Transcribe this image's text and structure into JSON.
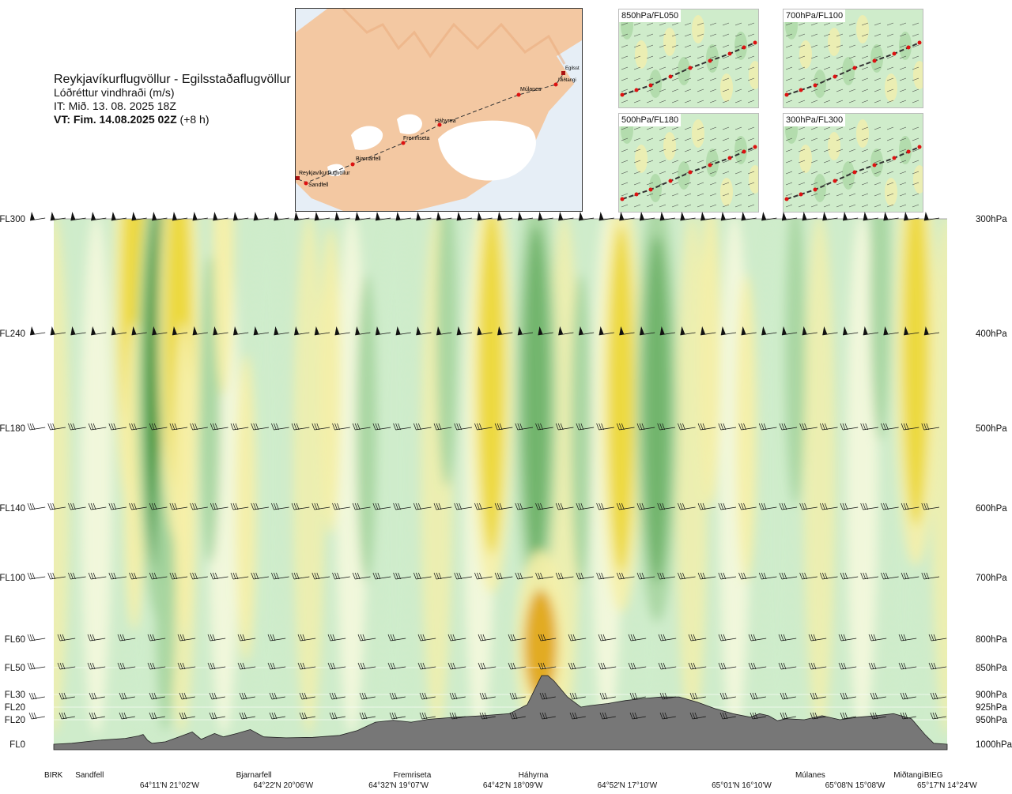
{
  "header": {
    "route": "Reykjavíkurflugvöllur - Egilsstaðaflugvöllur",
    "parameter": "Lóðréttur vindhraði (m/s)",
    "issue_time": "IT: Mið. 13. 08. 2025 18Z",
    "valid_time": "VT: Fim. 14.08.2025 02Z",
    "lead": "(+8 h)"
  },
  "map": {
    "places": [
      "Reykjavíkurflugvöllur",
      "Sandfell",
      "Bjarnarfell",
      "Fremriseta",
      "Háhyrna",
      "Múlanes",
      "Miðtangi",
      "Egilsst"
    ]
  },
  "insets": [
    "850hPa/FL050",
    "700hPa/FL100",
    "500hPa/FL180",
    "300hPa/FL300"
  ],
  "colors": {
    "strong_up": "#e0a818",
    "up": "#ecd83a",
    "weak_up": "#f6efa8",
    "near_zero": "#fcfbe0",
    "weak_down": "#cfeccb",
    "down": "#a6d5a0",
    "strong_down": "#6fb36a",
    "very_strong_down": "#3c9438",
    "terrain": "#777777",
    "map_land": "#f3c8a2",
    "map_sea": "#e6eef6"
  },
  "chart_data": {
    "type": "heatmap",
    "title": "Reykjavíkurflugvöllur - Egilsstaðaflugvöllur",
    "variable": "Lóðréttur vindhraði (m/s)",
    "left_axis_levels": [
      {
        "label": "FL300",
        "hpa": 300
      },
      {
        "label": "FL240",
        "hpa": 400
      },
      {
        "label": "FL180",
        "hpa": 500
      },
      {
        "label": "FL140",
        "hpa": 600
      },
      {
        "label": "FL100",
        "hpa": 700
      },
      {
        "label": "FL60",
        "hpa": 800
      },
      {
        "label": "FL50",
        "hpa": 850
      },
      {
        "label": "FL30",
        "hpa": 900
      },
      {
        "label": "FL20",
        "hpa": 925
      },
      {
        "label": "FL20",
        "hpa": 950
      },
      {
        "label": "FL0",
        "hpa": 1000
      }
    ],
    "right_axis_levels": [
      "300hPa",
      "400hPa",
      "500hPa",
      "600hPa",
      "700hPa",
      "800hPa",
      "850hPa",
      "900hPa",
      "925hPa",
      "950hPa",
      "1000hPa"
    ],
    "waypoints": [
      {
        "name": "BIRK",
        "pos": 0.0
      },
      {
        "name": "Sandfell",
        "pos": 0.04
      },
      {
        "name": "Bjarnarfell",
        "pos": 0.22
      },
      {
        "name": "Fremriseta",
        "pos": 0.396
      },
      {
        "name": "Háhyrna",
        "pos": 0.536
      },
      {
        "name": "Múlanes",
        "pos": 0.846
      },
      {
        "name": "Miðtangi",
        "pos": 0.956
      },
      {
        "name": "BIEG",
        "pos": 0.99
      }
    ],
    "coordinates": [
      {
        "label": "64°11'N 21°02'W",
        "pos": 0.13
      },
      {
        "label": "64°22'N 20°06'W",
        "pos": 0.257
      },
      {
        "label": "64°32'N 19°07'W",
        "pos": 0.386
      },
      {
        "label": "64°42'N 18°09'W",
        "pos": 0.514
      },
      {
        "label": "64°52'N 17°10'W",
        "pos": 0.642
      },
      {
        "label": "65°01'N 16°10'W",
        "pos": 0.77
      },
      {
        "label": "65°08'N 15°08'W",
        "pos": 0.897
      },
      {
        "label": "65°17'N 14°24'W",
        "pos": 1.0
      }
    ],
    "terrain_profile_hpa": [
      [
        0.0,
        1000
      ],
      [
        0.02,
        998
      ],
      [
        0.05,
        992
      ],
      [
        0.08,
        988
      ],
      [
        0.095,
        983
      ],
      [
        0.1,
        980
      ],
      [
        0.105,
        992
      ],
      [
        0.11,
        998
      ],
      [
        0.125,
        995
      ],
      [
        0.14,
        985
      ],
      [
        0.155,
        975
      ],
      [
        0.165,
        990
      ],
      [
        0.18,
        978
      ],
      [
        0.19,
        985
      ],
      [
        0.205,
        978
      ],
      [
        0.22,
        970
      ],
      [
        0.235,
        985
      ],
      [
        0.26,
        987
      ],
      [
        0.29,
        986
      ],
      [
        0.32,
        982
      ],
      [
        0.34,
        972
      ],
      [
        0.36,
        955
      ],
      [
        0.38,
        951
      ],
      [
        0.4,
        955
      ],
      [
        0.42,
        949
      ],
      [
        0.45,
        945
      ],
      [
        0.48,
        942
      ],
      [
        0.51,
        938
      ],
      [
        0.53,
        920
      ],
      [
        0.54,
        885
      ],
      [
        0.546,
        865
      ],
      [
        0.553,
        865
      ],
      [
        0.56,
        875
      ],
      [
        0.575,
        905
      ],
      [
        0.59,
        925
      ],
      [
        0.6,
        922
      ],
      [
        0.62,
        918
      ],
      [
        0.64,
        912
      ],
      [
        0.66,
        908
      ],
      [
        0.68,
        905
      ],
      [
        0.7,
        905
      ],
      [
        0.72,
        915
      ],
      [
        0.74,
        928
      ],
      [
        0.76,
        938
      ],
      [
        0.78,
        945
      ],
      [
        0.79,
        938
      ],
      [
        0.8,
        942
      ],
      [
        0.81,
        952
      ],
      [
        0.82,
        948
      ],
      [
        0.84,
        950
      ],
      [
        0.86,
        942
      ],
      [
        0.88,
        950
      ],
      [
        0.9,
        945
      ],
      [
        0.92,
        942
      ],
      [
        0.94,
        938
      ],
      [
        0.96,
        948
      ],
      [
        0.975,
        980
      ],
      [
        0.985,
        998
      ],
      [
        1.0,
        1000
      ]
    ],
    "w_bands": [
      {
        "pos": 0.09,
        "hpa": 380,
        "strength": 2
      },
      {
        "pos": 0.09,
        "hpa": 560,
        "strength": 1
      },
      {
        "pos": 0.12,
        "hpa": 460,
        "strength": -3
      },
      {
        "pos": 0.125,
        "hpa": 700,
        "strength": -1
      },
      {
        "pos": 0.14,
        "hpa": 400,
        "strength": 2
      },
      {
        "pos": 0.145,
        "hpa": 560,
        "strength": 1
      },
      {
        "pos": 0.175,
        "hpa": 480,
        "strength": -1
      },
      {
        "pos": 0.19,
        "hpa": 320,
        "strength": 1
      },
      {
        "pos": 0.215,
        "hpa": 600,
        "strength": 1
      },
      {
        "pos": 0.31,
        "hpa": 450,
        "strength": 1
      },
      {
        "pos": 0.35,
        "hpa": 500,
        "strength": -1
      },
      {
        "pos": 0.44,
        "hpa": 400,
        "strength": -1
      },
      {
        "pos": 0.49,
        "hpa": 450,
        "strength": 2
      },
      {
        "pos": 0.54,
        "hpa": 470,
        "strength": -2
      },
      {
        "pos": 0.545,
        "hpa": 810,
        "strength": 3
      },
      {
        "pos": 0.59,
        "hpa": 500,
        "strength": -1
      },
      {
        "pos": 0.635,
        "hpa": 470,
        "strength": 2
      },
      {
        "pos": 0.675,
        "hpa": 480,
        "strength": -2
      },
      {
        "pos": 0.735,
        "hpa": 420,
        "strength": 1
      },
      {
        "pos": 0.775,
        "hpa": 500,
        "strength": 1
      },
      {
        "pos": 0.83,
        "hpa": 420,
        "strength": -1
      },
      {
        "pos": 0.925,
        "hpa": 360,
        "strength": -1
      },
      {
        "pos": 0.965,
        "hpa": 420,
        "strength": 2
      }
    ]
  }
}
